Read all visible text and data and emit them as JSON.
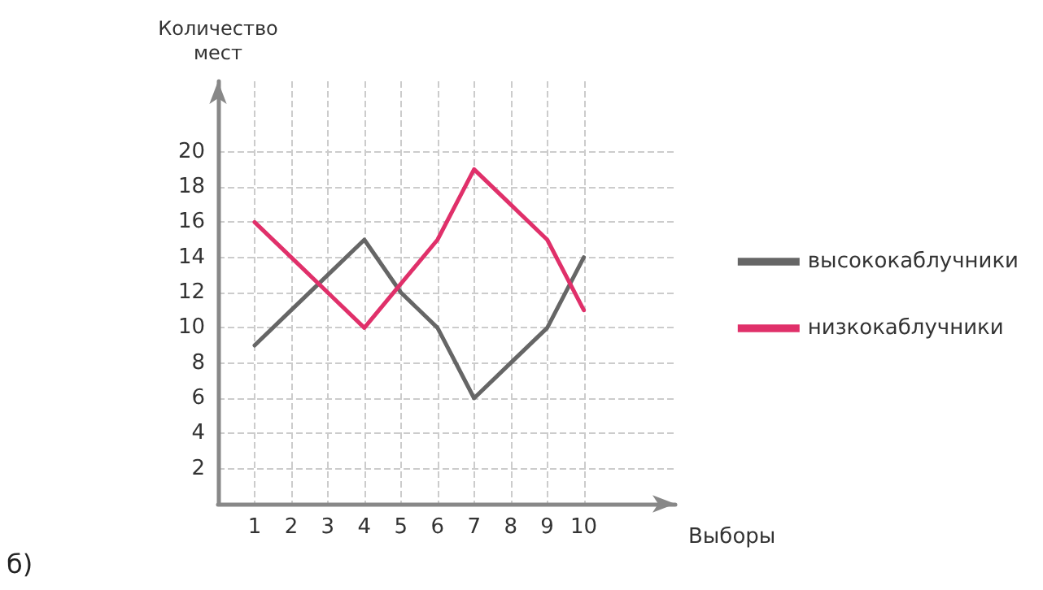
{
  "chart_data": {
    "type": "line",
    "xlabel": "Выборы",
    "ylabel": "Количество\nмест",
    "x": [
      1,
      2,
      3,
      4,
      5,
      6,
      7,
      8,
      9,
      10
    ],
    "series": [
      {
        "name": "высококаблучники",
        "color": "#666666",
        "values": [
          9,
          11,
          13,
          15,
          12,
          10,
          6,
          8,
          10,
          14
        ]
      },
      {
        "name": "низкокаблучники",
        "color": "#e0306a",
        "values": [
          16,
          14,
          12,
          10,
          12.5,
          15,
          19,
          17,
          15,
          11
        ]
      }
    ],
    "xlim": [
      0,
      12.5
    ],
    "xticks": [
      1,
      2,
      3,
      4,
      5,
      6,
      7,
      8,
      9,
      10
    ],
    "ylim": [
      0,
      24
    ],
    "yticks": [
      2,
      4,
      6,
      8,
      10,
      12,
      14,
      16,
      18,
      20
    ],
    "grid": true,
    "legend": "right",
    "marker": "none",
    "line_style": "solid",
    "annotations": [
      "б)"
    ]
  }
}
